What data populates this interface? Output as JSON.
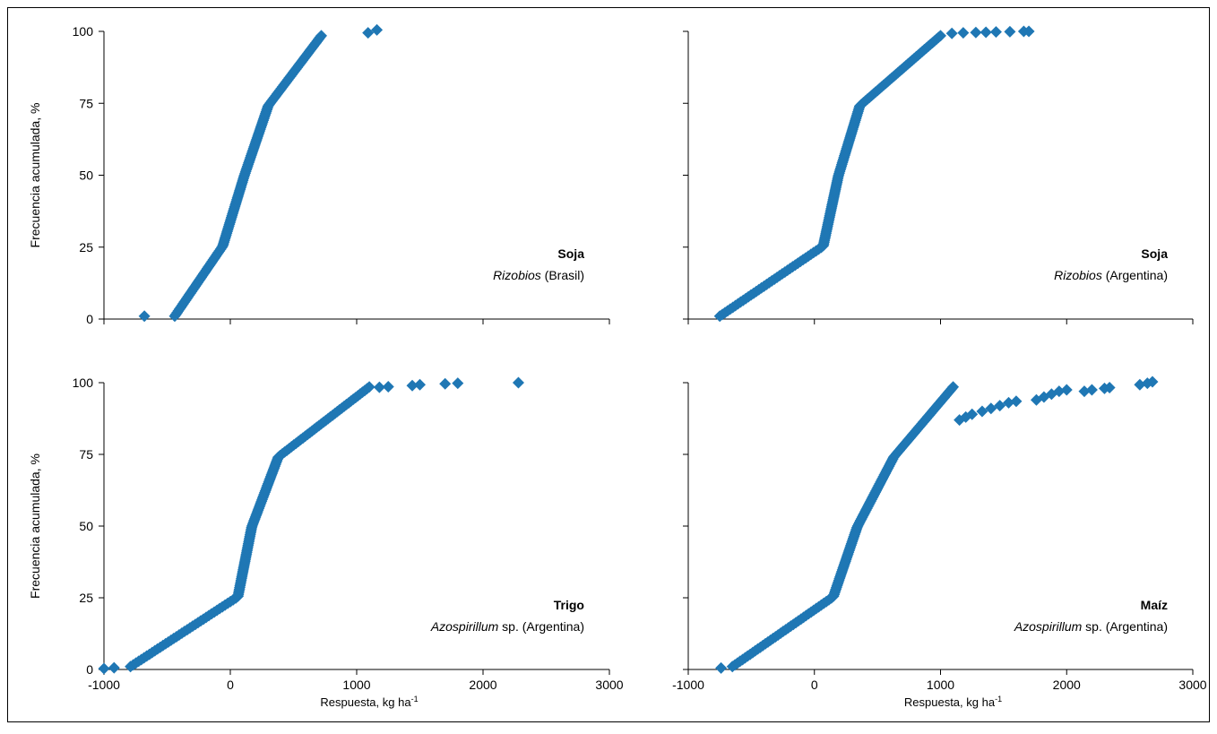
{
  "chart_data": [
    {
      "type": "scatter",
      "title": "Soja",
      "subtitle_italic": "Rizobios",
      "subtitle_rest": " (Brasil)",
      "xlabel": "",
      "ylabel": "Frecuencia acumulada, %",
      "xlim": [
        -1000,
        3000
      ],
      "ylim": [
        0,
        100
      ],
      "xticks": [
        "-1000",
        "0",
        "1000",
        "2000",
        "3000"
      ],
      "yticks": [
        "0",
        "25",
        "50",
        "75",
        "100"
      ],
      "marker": "diamond",
      "color": "#1f77b4",
      "shape": {
        "min": -440,
        "q1": -60,
        "median": 110,
        "q3": 300,
        "max": 720
      },
      "extra_points": [
        {
          "x": -680,
          "y": 1
        },
        {
          "x": 1090,
          "y": 99.5
        },
        {
          "x": 1160,
          "y": 100.5
        }
      ]
    },
    {
      "type": "scatter",
      "title": "Soja",
      "subtitle_italic": "Rizobios",
      "subtitle_rest": " (Argentina)",
      "xlabel": "",
      "ylabel": "",
      "xlim": [
        -1000,
        3000
      ],
      "ylim": [
        0,
        100
      ],
      "xticks": [
        "-1000",
        "0",
        "1000",
        "2000",
        "3000"
      ],
      "yticks": [
        "0",
        "25",
        "50",
        "75",
        "100"
      ],
      "marker": "diamond",
      "color": "#1f77b4",
      "shape": {
        "min": -750,
        "q1": 70,
        "median": 190,
        "q3": 360,
        "max": 1000
      },
      "extra_points": [
        {
          "x": 1090,
          "y": 99.3
        },
        {
          "x": 1180,
          "y": 99.5
        },
        {
          "x": 1280,
          "y": 99.6
        },
        {
          "x": 1360,
          "y": 99.7
        },
        {
          "x": 1440,
          "y": 99.8
        },
        {
          "x": 1550,
          "y": 99.9
        },
        {
          "x": 1660,
          "y": 100
        },
        {
          "x": 1700,
          "y": 100
        }
      ]
    },
    {
      "type": "scatter",
      "title": "Trigo",
      "subtitle_italic": "Azospirillum",
      "subtitle_rest": " sp. (Argentina)",
      "xlabel": "Respuesta, kg ha",
      "xlabel_sup": "-1",
      "ylabel": "Frecuencia acumulada, %",
      "xlim": [
        -1000,
        3000
      ],
      "ylim": [
        0,
        100
      ],
      "xticks": [
        "-1000",
        "0",
        "1000",
        "2000",
        "3000"
      ],
      "yticks": [
        "0",
        "25",
        "50",
        "75",
        "100"
      ],
      "marker": "diamond",
      "color": "#1f77b4",
      "shape": {
        "min": -790,
        "q1": 60,
        "median": 170,
        "q3": 380,
        "max": 1100
      },
      "extra_points": [
        {
          "x": -1000,
          "y": 0.3
        },
        {
          "x": -920,
          "y": 0.6
        },
        {
          "x": 1180,
          "y": 98.4
        },
        {
          "x": 1250,
          "y": 98.6
        },
        {
          "x": 1440,
          "y": 99
        },
        {
          "x": 1500,
          "y": 99.3
        },
        {
          "x": 1700,
          "y": 99.6
        },
        {
          "x": 1800,
          "y": 99.8
        },
        {
          "x": 2280,
          "y": 100
        }
      ]
    },
    {
      "type": "scatter",
      "title": "Maíz",
      "subtitle_italic": "Azospirillum",
      "subtitle_rest": " sp. (Argentina)",
      "xlabel": "Respuesta, kg ha",
      "xlabel_sup": "-1",
      "ylabel": "",
      "xlim": [
        -1000,
        3000
      ],
      "ylim": [
        0,
        100
      ],
      "xticks": [
        "-1000",
        "0",
        "1000",
        "2000",
        "3000"
      ],
      "yticks": [
        "0",
        "25",
        "50",
        "75",
        "100"
      ],
      "marker": "diamond",
      "color": "#1f77b4",
      "shape": {
        "min": -650,
        "q1": 150,
        "median": 340,
        "q3": 630,
        "max": 1100
      },
      "extra_points": [
        {
          "x": -740,
          "y": 0.5
        },
        {
          "x": 1150,
          "y": 87
        },
        {
          "x": 1200,
          "y": 88
        },
        {
          "x": 1250,
          "y": 89
        },
        {
          "x": 1330,
          "y": 90
        },
        {
          "x": 1400,
          "y": 91
        },
        {
          "x": 1470,
          "y": 92
        },
        {
          "x": 1540,
          "y": 93
        },
        {
          "x": 1600,
          "y": 93.5
        },
        {
          "x": 1760,
          "y": 94
        },
        {
          "x": 1820,
          "y": 95
        },
        {
          "x": 1880,
          "y": 96
        },
        {
          "x": 1940,
          "y": 97
        },
        {
          "x": 2000,
          "y": 97.5
        },
        {
          "x": 2140,
          "y": 97
        },
        {
          "x": 2200,
          "y": 97.5
        },
        {
          "x": 2300,
          "y": 98
        },
        {
          "x": 2340,
          "y": 98.3
        },
        {
          "x": 2580,
          "y": 99.3
        },
        {
          "x": 2640,
          "y": 99.8
        },
        {
          "x": 2680,
          "y": 100.3
        }
      ]
    }
  ]
}
